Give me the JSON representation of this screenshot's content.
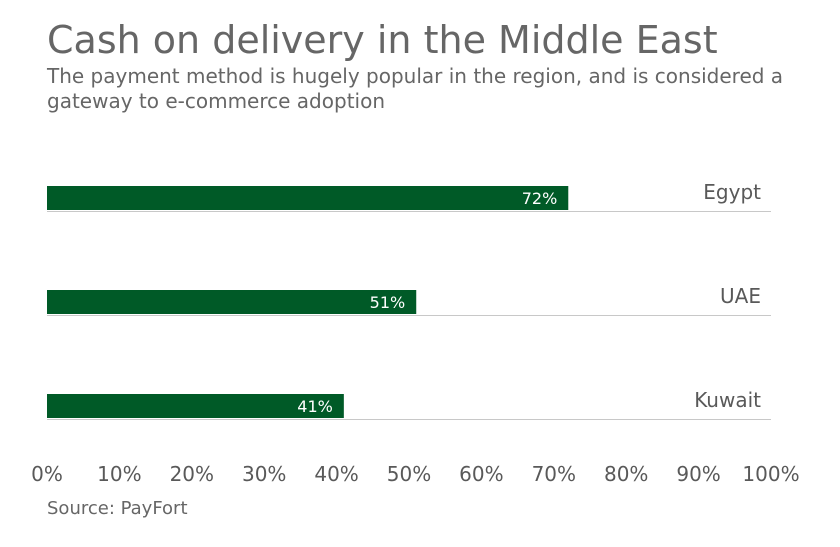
{
  "title": "Cash on delivery in the Middle East",
  "subtitle": "The payment method is hugely popular in the region, and is considered a gateway to e-commerce adoption",
  "source": "Source: PayFort",
  "chart_data": {
    "type": "bar",
    "orientation": "horizontal",
    "categories": [
      "Egypt",
      "UAE",
      "Kuwait"
    ],
    "values": [
      72,
      51,
      41
    ],
    "data_labels": [
      "72%",
      "51%",
      "41%"
    ],
    "xlim": [
      0,
      100
    ],
    "x_ticks": [
      0,
      10,
      20,
      30,
      40,
      50,
      60,
      70,
      80,
      90,
      100
    ],
    "x_tick_labels": [
      "0%",
      "10%",
      "20%",
      "30%",
      "40%",
      "50%",
      "60%",
      "70%",
      "80%",
      "90%",
      "100%"
    ],
    "bar_color": "#005A27",
    "grid": false,
    "legend": "none"
  }
}
